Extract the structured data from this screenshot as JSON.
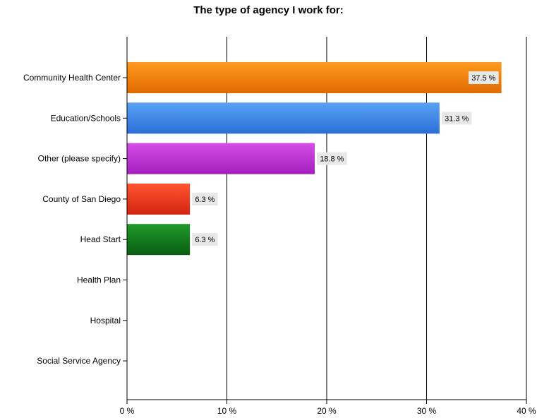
{
  "chart_data": {
    "type": "bar",
    "orientation": "horizontal",
    "title": "The type of agency I work for:",
    "xlabel": "",
    "ylabel": "",
    "categories": [
      "Community Health Center",
      "Education/Schools",
      "Other (please specify)",
      "County of San Diego",
      "Head Start",
      "Health Plan",
      "Hospital",
      "Social Service Agency"
    ],
    "values": [
      37.5,
      31.3,
      18.8,
      6.3,
      6.3,
      0,
      0,
      0
    ],
    "data_labels": [
      "37.5 %",
      "31.3 %",
      "18.8 %",
      "6.3 %",
      "6.3 %",
      "",
      "",
      ""
    ],
    "bar_colors": [
      [
        "#ff9a1f",
        "#e06a00"
      ],
      [
        "#5aa2f5",
        "#2b6fd6"
      ],
      [
        "#d64ee8",
        "#a31ebf"
      ],
      [
        "#ff5530",
        "#d42410"
      ],
      [
        "#1f9a2a",
        "#0a5e12"
      ],
      [
        "#cccccc",
        "#999999"
      ],
      [
        "#cccccc",
        "#999999"
      ],
      [
        "#cccccc",
        "#999999"
      ]
    ],
    "xlim": [
      0,
      40
    ],
    "x_ticks": [
      0,
      10,
      20,
      30,
      40
    ],
    "x_tick_labels": [
      "0 %",
      "10 %",
      "20 %",
      "30 %",
      "40 %"
    ],
    "grid": "vertical",
    "legend": "none"
  }
}
